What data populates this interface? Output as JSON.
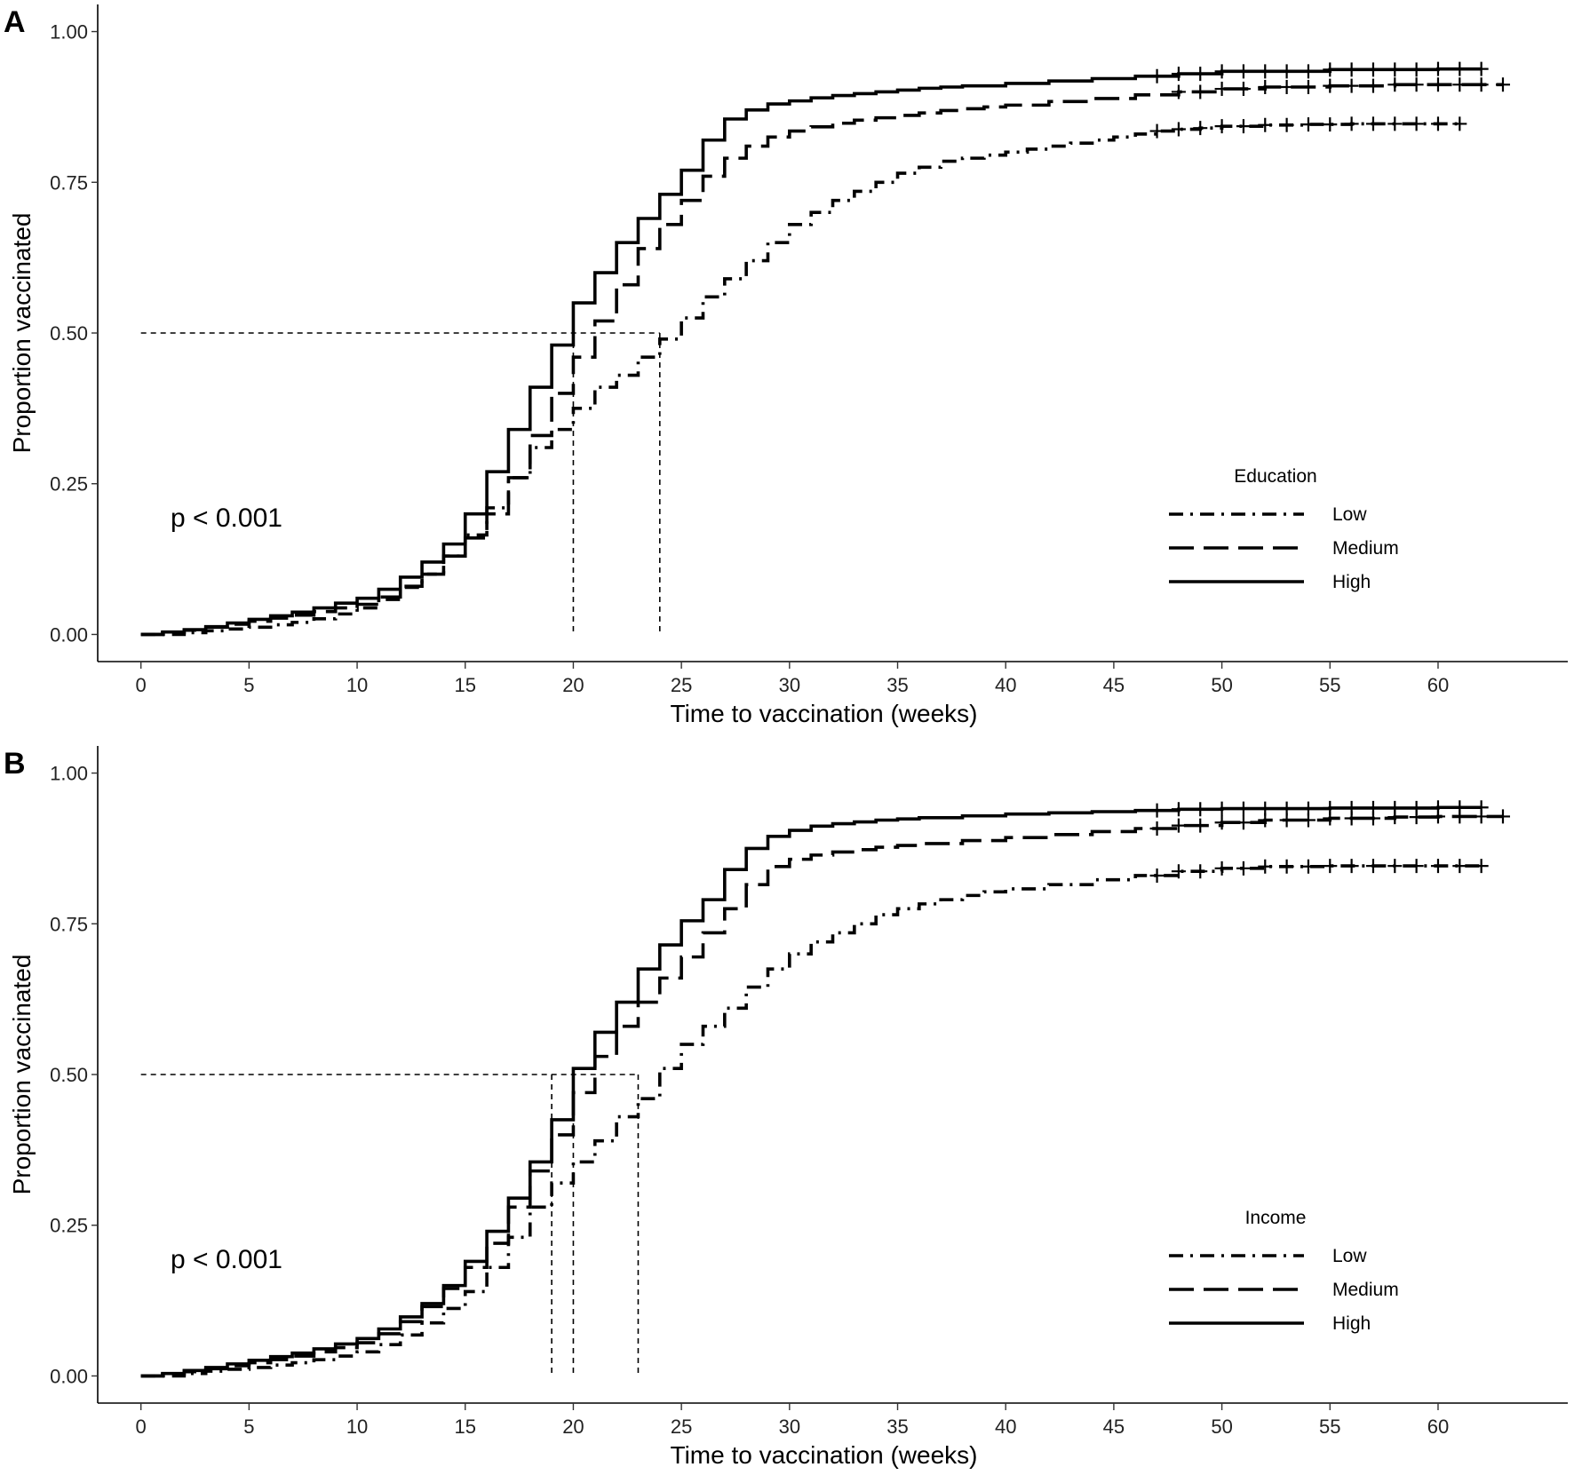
{
  "chart_data": [
    {
      "type": "line",
      "panel_label": "A",
      "xlabel": "Time to vaccination (weeks)",
      "ylabel": "Proportion vaccinated",
      "xlim": [
        -2,
        66
      ],
      "ylim": [
        -0.045,
        1.045
      ],
      "xticks": [
        0,
        5,
        10,
        15,
        20,
        25,
        30,
        35,
        40,
        45,
        50,
        55,
        60
      ],
      "yticks": [
        0,
        0.25,
        0.5,
        0.75,
        1.0
      ],
      "ytick_labels": [
        "0.00",
        "0.25",
        "0.50",
        "0.75",
        "1.00"
      ],
      "grid": false,
      "annotation": "p < 0.001",
      "legend_title": "Education",
      "legend_position": "bottom-right",
      "median_line": {
        "y": 0.5,
        "x": [
          20,
          24
        ]
      },
      "series": [
        {
          "name": "Low",
          "linestyle": "dashdot",
          "x": [
            0,
            1,
            2,
            3,
            4,
            5,
            6,
            7,
            8,
            9,
            10,
            11,
            12,
            13,
            14,
            15,
            16,
            17,
            18,
            19,
            20,
            21,
            22,
            23,
            24,
            25,
            26,
            27,
            28,
            29,
            30,
            31,
            32,
            33,
            34,
            35,
            36,
            37,
            38,
            39,
            40,
            41,
            42,
            43,
            44,
            45,
            46,
            47,
            48,
            49,
            50,
            52,
            54,
            56,
            58,
            60,
            61
          ],
          "y": [
            0,
            0,
            0.003,
            0.006,
            0.009,
            0.012,
            0.016,
            0.02,
            0.026,
            0.034,
            0.044,
            0.058,
            0.078,
            0.1,
            0.13,
            0.165,
            0.21,
            0.26,
            0.31,
            0.34,
            0.375,
            0.41,
            0.43,
            0.46,
            0.49,
            0.525,
            0.56,
            0.59,
            0.62,
            0.65,
            0.68,
            0.7,
            0.72,
            0.735,
            0.75,
            0.765,
            0.775,
            0.785,
            0.79,
            0.795,
            0.8,
            0.805,
            0.81,
            0.815,
            0.82,
            0.825,
            0.83,
            0.835,
            0.838,
            0.84,
            0.843,
            0.845,
            0.846,
            0.847,
            0.847,
            0.847,
            0.847
          ],
          "censor_x": [
            47,
            48,
            49,
            50,
            51,
            52,
            53,
            54,
            55,
            56,
            57,
            58,
            59,
            60,
            61
          ]
        },
        {
          "name": "Medium",
          "linestyle": "dashed",
          "x": [
            0,
            1,
            2,
            3,
            4,
            5,
            6,
            7,
            8,
            9,
            10,
            11,
            12,
            13,
            14,
            15,
            16,
            17,
            18,
            19,
            20,
            21,
            22,
            23,
            24,
            25,
            26,
            27,
            28,
            29,
            30,
            31,
            32,
            33,
            34,
            35,
            36,
            37,
            38,
            39,
            40,
            42,
            44,
            46,
            48,
            50,
            52,
            55,
            58,
            60,
            63
          ],
          "y": [
            0,
            0.003,
            0.007,
            0.012,
            0.017,
            0.022,
            0.027,
            0.032,
            0.038,
            0.044,
            0.05,
            0.062,
            0.08,
            0.1,
            0.13,
            0.16,
            0.2,
            0.26,
            0.33,
            0.4,
            0.46,
            0.52,
            0.58,
            0.64,
            0.68,
            0.72,
            0.76,
            0.79,
            0.81,
            0.825,
            0.835,
            0.842,
            0.848,
            0.853,
            0.857,
            0.861,
            0.865,
            0.869,
            0.872,
            0.875,
            0.878,
            0.884,
            0.889,
            0.895,
            0.9,
            0.905,
            0.908,
            0.91,
            0.912,
            0.912,
            0.912
          ],
          "censor_x": [
            48,
            49,
            50,
            51,
            52,
            53,
            54,
            55,
            56,
            57,
            58,
            59,
            60,
            61,
            62,
            63
          ]
        },
        {
          "name": "High",
          "linestyle": "solid",
          "x": [
            0,
            1,
            2,
            3,
            4,
            5,
            6,
            7,
            8,
            9,
            10,
            11,
            12,
            13,
            14,
            15,
            16,
            17,
            18,
            19,
            20,
            21,
            22,
            23,
            24,
            25,
            26,
            27,
            28,
            29,
            30,
            31,
            32,
            33,
            34,
            35,
            36,
            37,
            38,
            40,
            42,
            44,
            46,
            48,
            50,
            55,
            60,
            62
          ],
          "y": [
            0,
            0.004,
            0.008,
            0.013,
            0.019,
            0.025,
            0.031,
            0.037,
            0.044,
            0.052,
            0.06,
            0.075,
            0.095,
            0.12,
            0.15,
            0.2,
            0.27,
            0.34,
            0.41,
            0.48,
            0.55,
            0.6,
            0.65,
            0.69,
            0.73,
            0.77,
            0.82,
            0.855,
            0.87,
            0.88,
            0.885,
            0.89,
            0.894,
            0.897,
            0.9,
            0.903,
            0.906,
            0.908,
            0.91,
            0.914,
            0.918,
            0.922,
            0.926,
            0.93,
            0.934,
            0.937,
            0.938,
            0.938
          ],
          "censor_x": [
            47,
            48,
            49,
            50,
            51,
            52,
            53,
            54,
            55,
            56,
            57,
            58,
            59,
            60,
            61,
            62
          ]
        }
      ]
    },
    {
      "type": "line",
      "panel_label": "B",
      "xlabel": "Time to vaccination (weeks)",
      "ylabel": "Proportion vaccinated",
      "xlim": [
        -2,
        66
      ],
      "ylim": [
        -0.045,
        1.045
      ],
      "xticks": [
        0,
        5,
        10,
        15,
        20,
        25,
        30,
        35,
        40,
        45,
        50,
        55,
        60
      ],
      "yticks": [
        0,
        0.25,
        0.5,
        0.75,
        1.0
      ],
      "ytick_labels": [
        "0.00",
        "0.25",
        "0.50",
        "0.75",
        "1.00"
      ],
      "grid": false,
      "annotation": "p < 0.001",
      "legend_title": "Income",
      "legend_position": "bottom-right",
      "median_line": {
        "y": 0.5,
        "x": [
          19,
          20,
          23
        ]
      },
      "series": [
        {
          "name": "Low",
          "linestyle": "dashdot",
          "x": [
            0,
            1,
            2,
            3,
            4,
            5,
            6,
            7,
            8,
            9,
            10,
            11,
            12,
            13,
            14,
            15,
            16,
            17,
            18,
            19,
            20,
            21,
            22,
            23,
            24,
            25,
            26,
            27,
            28,
            29,
            30,
            31,
            32,
            33,
            34,
            35,
            36,
            37,
            38,
            39,
            40,
            42,
            44,
            46,
            48,
            50,
            52,
            55,
            58,
            60,
            62
          ],
          "y": [
            0,
            0,
            0.004,
            0.008,
            0.011,
            0.014,
            0.018,
            0.022,
            0.027,
            0.033,
            0.04,
            0.052,
            0.068,
            0.088,
            0.112,
            0.14,
            0.18,
            0.23,
            0.28,
            0.32,
            0.355,
            0.39,
            0.43,
            0.46,
            0.51,
            0.55,
            0.58,
            0.61,
            0.645,
            0.675,
            0.7,
            0.72,
            0.735,
            0.75,
            0.765,
            0.775,
            0.783,
            0.79,
            0.797,
            0.803,
            0.808,
            0.815,
            0.823,
            0.83,
            0.837,
            0.842,
            0.845,
            0.846,
            0.846,
            0.846,
            0.846
          ],
          "censor_x": [
            47,
            48,
            49,
            50,
            51,
            52,
            53,
            54,
            55,
            56,
            57,
            58,
            59,
            60,
            61,
            62
          ]
        },
        {
          "name": "Medium",
          "linestyle": "dashed",
          "x": [
            0,
            1,
            2,
            3,
            4,
            5,
            6,
            7,
            8,
            9,
            10,
            11,
            12,
            13,
            14,
            15,
            16,
            17,
            18,
            19,
            20,
            21,
            22,
            23,
            24,
            25,
            26,
            27,
            28,
            29,
            30,
            31,
            32,
            33,
            34,
            35,
            36,
            38,
            40,
            42,
            44,
            46,
            48,
            50,
            52,
            55,
            58,
            60,
            63
          ],
          "y": [
            0,
            0.003,
            0.007,
            0.012,
            0.017,
            0.022,
            0.027,
            0.033,
            0.04,
            0.047,
            0.055,
            0.07,
            0.09,
            0.115,
            0.145,
            0.18,
            0.22,
            0.28,
            0.34,
            0.4,
            0.47,
            0.53,
            0.58,
            0.62,
            0.66,
            0.695,
            0.735,
            0.775,
            0.815,
            0.845,
            0.857,
            0.864,
            0.869,
            0.873,
            0.877,
            0.88,
            0.883,
            0.888,
            0.893,
            0.898,
            0.903,
            0.908,
            0.913,
            0.918,
            0.922,
            0.925,
            0.927,
            0.928,
            0.928
          ],
          "censor_x": [
            47,
            48,
            49,
            50,
            51,
            52,
            53,
            54,
            55,
            56,
            57,
            58,
            59,
            60,
            61,
            62,
            63
          ]
        },
        {
          "name": "High",
          "linestyle": "solid",
          "x": [
            0,
            1,
            2,
            3,
            4,
            5,
            6,
            7,
            8,
            9,
            10,
            11,
            12,
            13,
            14,
            15,
            16,
            17,
            18,
            19,
            20,
            21,
            22,
            23,
            24,
            25,
            26,
            27,
            28,
            29,
            30,
            31,
            32,
            33,
            34,
            35,
            36,
            38,
            40,
            42,
            44,
            46,
            48,
            50,
            55,
            60,
            62
          ],
          "y": [
            0,
            0.004,
            0.009,
            0.014,
            0.02,
            0.026,
            0.032,
            0.038,
            0.045,
            0.053,
            0.062,
            0.078,
            0.098,
            0.12,
            0.15,
            0.19,
            0.24,
            0.295,
            0.355,
            0.425,
            0.51,
            0.57,
            0.62,
            0.675,
            0.715,
            0.755,
            0.79,
            0.84,
            0.875,
            0.895,
            0.905,
            0.912,
            0.916,
            0.919,
            0.922,
            0.924,
            0.926,
            0.929,
            0.932,
            0.934,
            0.936,
            0.938,
            0.94,
            0.941,
            0.942,
            0.943,
            0.943
          ],
          "censor_x": [
            47,
            48,
            49,
            50,
            51,
            52,
            53,
            54,
            55,
            56,
            57,
            58,
            59,
            60,
            61,
            62
          ]
        }
      ]
    }
  ]
}
